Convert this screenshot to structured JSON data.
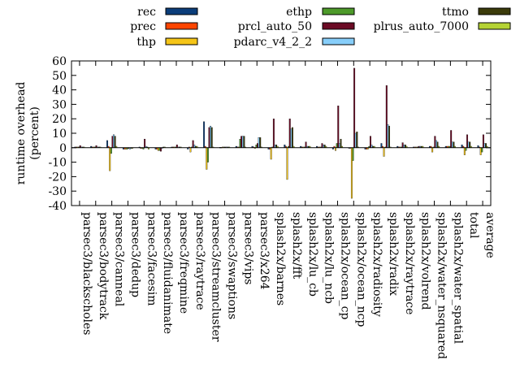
{
  "chart_data": {
    "type": "bar",
    "title": "",
    "xlabel": "",
    "ylabel": "runtime overhead\n(percent)",
    "ylim": [
      -40,
      60
    ],
    "yticks": [
      -40,
      -30,
      -20,
      -10,
      0,
      10,
      20,
      30,
      40,
      50,
      60
    ],
    "grid": false,
    "legend_position": "top",
    "categories": [
      "parsec3/blackscholes",
      "parsec3/bodytrack",
      "parsec3/canneal",
      "parsec3/dedup",
      "parsec3/facesim",
      "parsec3/fluidanimate",
      "parsec3/freqmine",
      "parsec3/raytrace",
      "parsec3/streamcluster",
      "parsec3/swaptions",
      "parsec3/vips",
      "parsec3/x264",
      "splash2x/barnes",
      "splash2x/fft",
      "splash2x/lu_cb",
      "splash2x/lu_ncb",
      "splash2x/ocean_cp",
      "splash2x/ocean_ncp",
      "splash2x/radiosity",
      "splash2x/radix",
      "splash2x/raytrace",
      "splash2x/volrend",
      "splash2x/water_nsquared",
      "splash2x/water_spatial",
      "total",
      "average"
    ],
    "series": [
      {
        "name": "rec",
        "color": "#0b3d7a",
        "values": [
          0.5,
          1,
          5,
          -1,
          0.5,
          -1,
          0.5,
          -1,
          18,
          0.3,
          1,
          1,
          -1,
          2,
          1,
          1,
          -1,
          0,
          -1,
          3,
          1,
          0.5,
          1,
          1,
          2,
          1.5
        ]
      },
      {
        "name": "prec",
        "color": "#ff4500",
        "values": [
          0.5,
          0.5,
          1,
          -1,
          -0.5,
          -1,
          0.5,
          0.5,
          1,
          0.3,
          0.5,
          0.5,
          -1,
          1,
          0.5,
          0.5,
          1,
          0,
          -1,
          1,
          0.5,
          0.5,
          1,
          1,
          1,
          0.5
        ]
      },
      {
        "name": "thp",
        "color": "#f5c518",
        "values": [
          0.5,
          0.5,
          -16,
          -1,
          -0.5,
          -2,
          0.5,
          -3,
          -15,
          0.5,
          0.5,
          -0.5,
          -8,
          -22,
          0.5,
          0.5,
          -2,
          -35,
          -1,
          -6,
          0.5,
          0.5,
          -3,
          1,
          -5,
          -5
        ]
      },
      {
        "name": "ethp",
        "color": "#4d9a2a",
        "values": [
          0.5,
          0.5,
          -4,
          -1,
          -1,
          -2,
          0.5,
          0.5,
          -10,
          0.5,
          6,
          2,
          0.5,
          1,
          0.5,
          0.5,
          3,
          -9,
          1,
          0.5,
          0.5,
          0.5,
          0.5,
          1,
          -2,
          -3
        ]
      },
      {
        "name": "prcl_auto_50",
        "color": "#6b0a24",
        "values": [
          1.5,
          1.5,
          8,
          -0.5,
          6,
          -2.5,
          2,
          5,
          14,
          0.5,
          8,
          3,
          20,
          20,
          4,
          3,
          29,
          55,
          8,
          43,
          3.5,
          1,
          8,
          12,
          9,
          9
        ]
      },
      {
        "name": "pdarc_v4_2_2",
        "color": "#87cefa",
        "values": [
          0.5,
          0.5,
          9,
          -1,
          1,
          -0.5,
          0.5,
          2,
          15,
          0.5,
          8,
          7,
          2,
          13,
          1,
          2,
          3,
          10,
          2,
          16,
          2,
          1,
          5,
          4,
          4,
          3
        ]
      },
      {
        "name": "ttmo",
        "color": "#3b3b0a",
        "values": [
          0.5,
          0.5,
          8,
          -0.5,
          0.5,
          0.5,
          0.5,
          1,
          14,
          0.5,
          8,
          7,
          2,
          14,
          1,
          2,
          6,
          11,
          1,
          15,
          2,
          1,
          4,
          4,
          4,
          3
        ]
      },
      {
        "name": "plrus_auto_7000",
        "color": "#b5d334",
        "values": [
          0.5,
          0.5,
          1,
          -0.5,
          -1,
          0.5,
          0.5,
          1,
          0.5,
          0.5,
          0.5,
          0.5,
          1,
          1,
          1,
          1,
          1,
          0.5,
          1,
          0.5,
          1,
          1,
          1,
          1,
          1,
          1
        ]
      }
    ]
  }
}
